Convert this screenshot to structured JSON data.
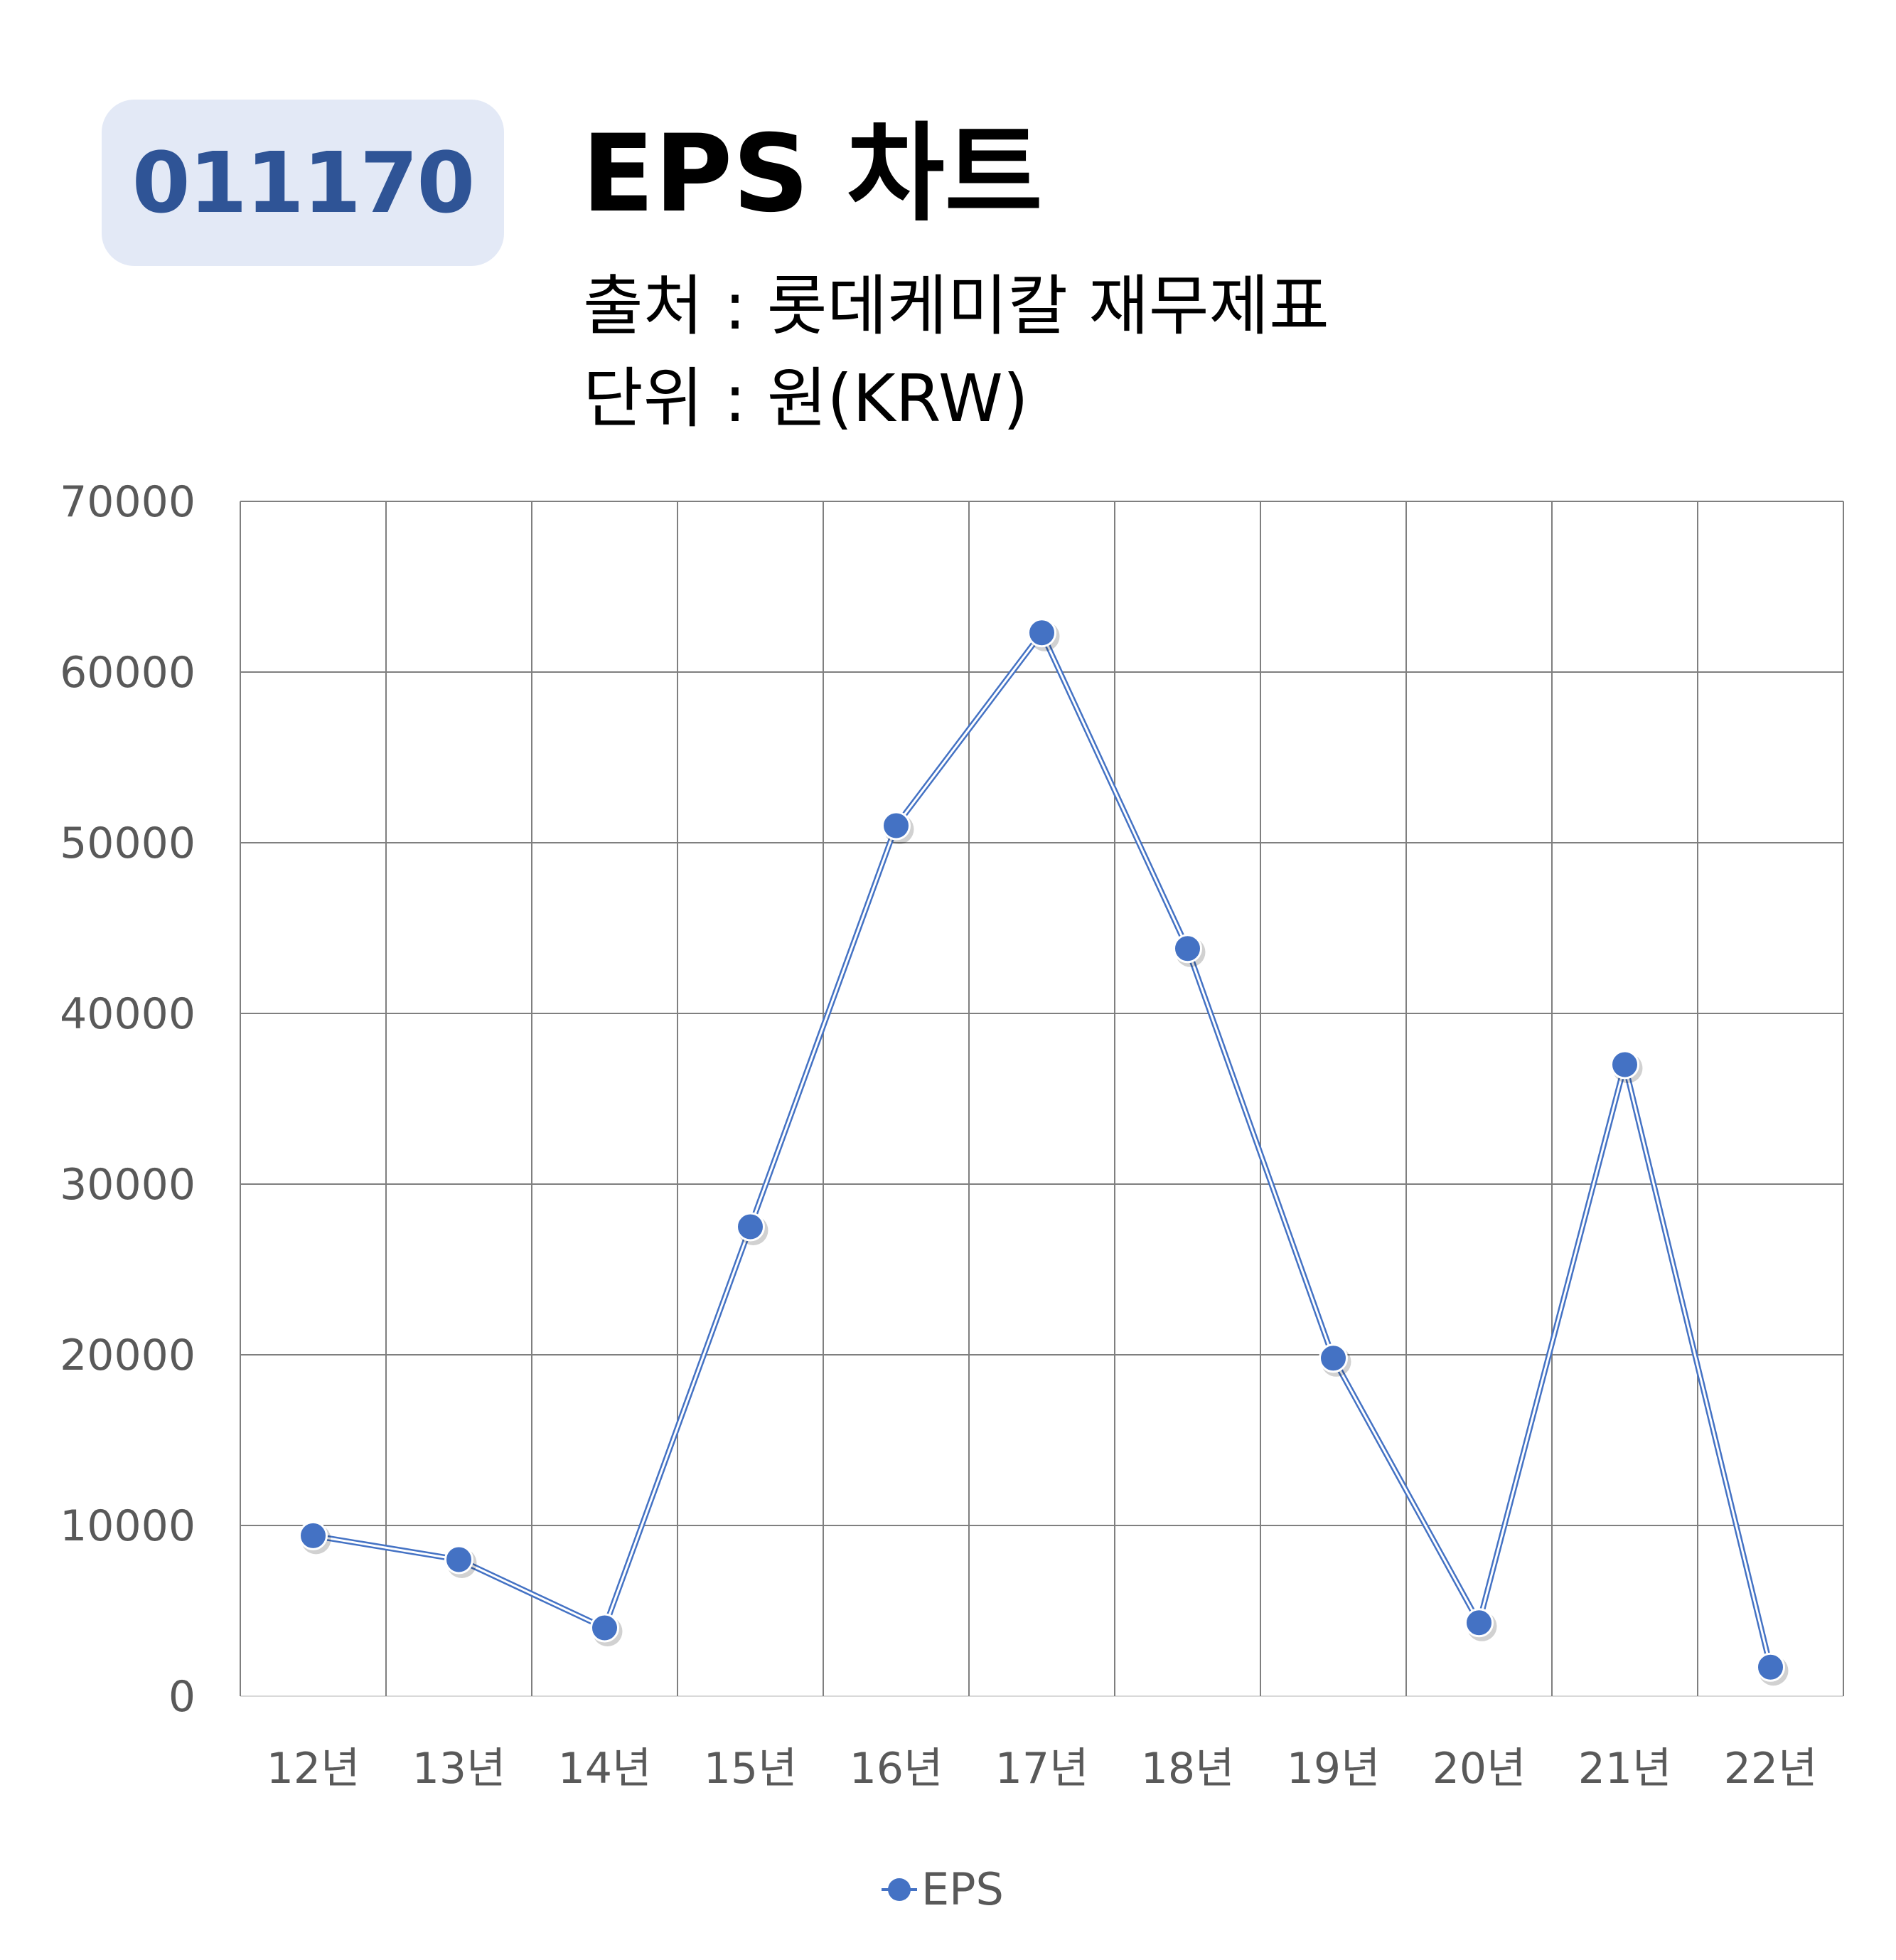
{
  "header": {
    "code": "011170",
    "title": "EPS 차트",
    "source": "출처 : 롯데케미칼 재무제표",
    "unit": "단위 : 원(KRW)"
  },
  "chart_data": {
    "type": "line",
    "categories": [
      "12년",
      "13년",
      "14년",
      "15년",
      "16년",
      "17년",
      "18년",
      "19년",
      "20년",
      "21년",
      "22년"
    ],
    "series": [
      {
        "name": "EPS",
        "values": [
          9400,
          8000,
          4000,
          27500,
          51000,
          62300,
          43800,
          19800,
          4300,
          37000,
          1700
        ]
      }
    ],
    "ylim": [
      0,
      70000
    ],
    "yticks": [
      0,
      10000,
      20000,
      30000,
      40000,
      50000,
      60000,
      70000
    ],
    "grid": true,
    "legend": "bottom",
    "colors": {
      "series": "#4472c4",
      "grid": "#7f7f7f",
      "text": "#595959"
    }
  }
}
